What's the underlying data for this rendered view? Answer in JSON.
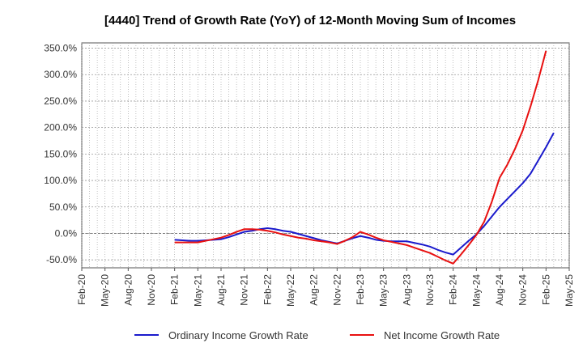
{
  "chart_data": {
    "type": "line",
    "title": "[4440]  Trend of Growth Rate (YoY) of 12-Month Moving Sum of Incomes",
    "xlabel": "",
    "ylabel": "",
    "ylim": [
      -65,
      360
    ],
    "x_ticks": [
      "Feb-20",
      "May-20",
      "Aug-20",
      "Nov-20",
      "Feb-21",
      "May-21",
      "Aug-21",
      "Nov-21",
      "Feb-22",
      "May-22",
      "Aug-22",
      "Nov-22",
      "Feb-23",
      "May-23",
      "Aug-23",
      "Nov-23",
      "Feb-24",
      "May-24",
      "Aug-24",
      "Nov-24",
      "Feb-25",
      "May-25"
    ],
    "y_ticks": [
      350,
      300,
      250,
      200,
      150,
      100,
      50,
      0,
      -50
    ],
    "y_tick_labels": [
      "350.0%",
      "300.0%",
      "250.0%",
      "200.0%",
      "150.0%",
      "100.0%",
      "50.0%",
      "0.0%",
      "-50.0%"
    ],
    "grid": true,
    "legend_position": "bottom",
    "colors": {
      "ordinary": "#1a1acc",
      "net": "#e81010",
      "grid": "#999999",
      "axis": "#555555"
    },
    "series": [
      {
        "name": "Ordinary Income Growth Rate",
        "color": "#1a1acc",
        "points": [
          [
            "Feb-21",
            -12
          ],
          [
            "Mar-21",
            -13
          ],
          [
            "Apr-21",
            -14
          ],
          [
            "May-21",
            -14
          ],
          [
            "Jun-21",
            -13
          ],
          [
            "Jul-21",
            -12
          ],
          [
            "Aug-21",
            -11
          ],
          [
            "Sep-21",
            -7
          ],
          [
            "Oct-21",
            -2
          ],
          [
            "Nov-21",
            3
          ],
          [
            "Dec-21",
            5
          ],
          [
            "Jan-22",
            8
          ],
          [
            "Feb-22",
            10
          ],
          [
            "Mar-22",
            8
          ],
          [
            "Apr-22",
            5
          ],
          [
            "May-22",
            3
          ],
          [
            "Jun-22",
            -1
          ],
          [
            "Jul-22",
            -5
          ],
          [
            "Aug-22",
            -9
          ],
          [
            "Sep-22",
            -13
          ],
          [
            "Oct-22",
            -16
          ],
          [
            "Nov-22",
            -19
          ],
          [
            "Dec-22",
            -14
          ],
          [
            "Jan-23",
            -9
          ],
          [
            "Feb-23",
            -5
          ],
          [
            "Mar-23",
            -8
          ],
          [
            "Apr-23",
            -12
          ],
          [
            "May-23",
            -14
          ],
          [
            "Jun-23",
            -15
          ],
          [
            "Jul-23",
            -15
          ],
          [
            "Aug-23",
            -15
          ],
          [
            "Sep-23",
            -18
          ],
          [
            "Oct-23",
            -21
          ],
          [
            "Nov-23",
            -25
          ],
          [
            "Dec-23",
            -31
          ],
          [
            "Jan-24",
            -36
          ],
          [
            "Feb-24",
            -40
          ],
          [
            "Mar-24",
            -27
          ],
          [
            "Apr-24",
            -14
          ],
          [
            "May-24",
            -2
          ],
          [
            "Jun-24",
            14
          ],
          [
            "Jul-24",
            32
          ],
          [
            "Aug-24",
            50
          ],
          [
            "Sep-24",
            65
          ],
          [
            "Oct-24",
            80
          ],
          [
            "Nov-24",
            95
          ],
          [
            "Dec-24",
            113
          ],
          [
            "Jan-25",
            138
          ],
          [
            "Feb-25",
            163
          ],
          [
            "Mar-25",
            190
          ]
        ]
      },
      {
        "name": "Net Income Growth Rate",
        "color": "#e81010",
        "points": [
          [
            "Feb-21",
            -17
          ],
          [
            "Mar-21",
            -17
          ],
          [
            "Apr-21",
            -17
          ],
          [
            "May-21",
            -17
          ],
          [
            "Jun-21",
            -14
          ],
          [
            "Jul-21",
            -11
          ],
          [
            "Aug-21",
            -8
          ],
          [
            "Sep-21",
            -3
          ],
          [
            "Oct-21",
            3
          ],
          [
            "Nov-21",
            8
          ],
          [
            "Dec-21",
            8
          ],
          [
            "Jan-22",
            7
          ],
          [
            "Feb-22",
            5
          ],
          [
            "Mar-22",
            2
          ],
          [
            "Apr-22",
            -2
          ],
          [
            "May-22",
            -5
          ],
          [
            "Jun-22",
            -8
          ],
          [
            "Jul-22",
            -10
          ],
          [
            "Aug-22",
            -13
          ],
          [
            "Sep-22",
            -15
          ],
          [
            "Oct-22",
            -17
          ],
          [
            "Nov-22",
            -20
          ],
          [
            "Dec-22",
            -14
          ],
          [
            "Jan-23",
            -7
          ],
          [
            "Feb-23",
            3
          ],
          [
            "Mar-23",
            -2
          ],
          [
            "Apr-23",
            -8
          ],
          [
            "May-23",
            -13
          ],
          [
            "Jun-23",
            -16
          ],
          [
            "Jul-23",
            -19
          ],
          [
            "Aug-23",
            -22
          ],
          [
            "Sep-23",
            -27
          ],
          [
            "Oct-23",
            -32
          ],
          [
            "Nov-23",
            -37
          ],
          [
            "Dec-23",
            -44
          ],
          [
            "Jan-24",
            -51
          ],
          [
            "Feb-24",
            -57
          ],
          [
            "Mar-24",
            -40
          ],
          [
            "Apr-24",
            -22
          ],
          [
            "May-24",
            -3
          ],
          [
            "Jun-24",
            22
          ],
          [
            "Jul-24",
            60
          ],
          [
            "Aug-24",
            105
          ],
          [
            "Sep-24",
            130
          ],
          [
            "Oct-24",
            160
          ],
          [
            "Nov-24",
            195
          ],
          [
            "Dec-24",
            240
          ],
          [
            "Jan-25",
            290
          ],
          [
            "Feb-25",
            345
          ]
        ]
      }
    ]
  }
}
